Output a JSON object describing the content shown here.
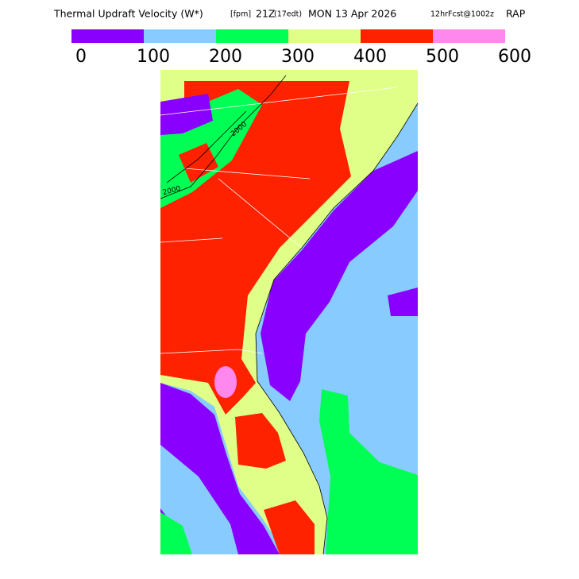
{
  "header": {
    "title_parts": [
      "Thermal Updraft Velocity (W*)",
      "[fpm]",
      "21Z",
      "(17edt)",
      "MON 13 Apr 2026",
      "12hrFcst@1002z",
      "RAP"
    ]
  },
  "legend": {
    "ticks": [
      "0",
      "100",
      "200",
      "300",
      "400",
      "500",
      "600"
    ],
    "colors": [
      "#8a00ff",
      "#88ccff",
      "#00ff55",
      "#e0ff88",
      "#ff2200",
      "#ff88ee"
    ]
  },
  "map": {
    "contour_labels": [
      "2000",
      "2000"
    ]
  }
}
